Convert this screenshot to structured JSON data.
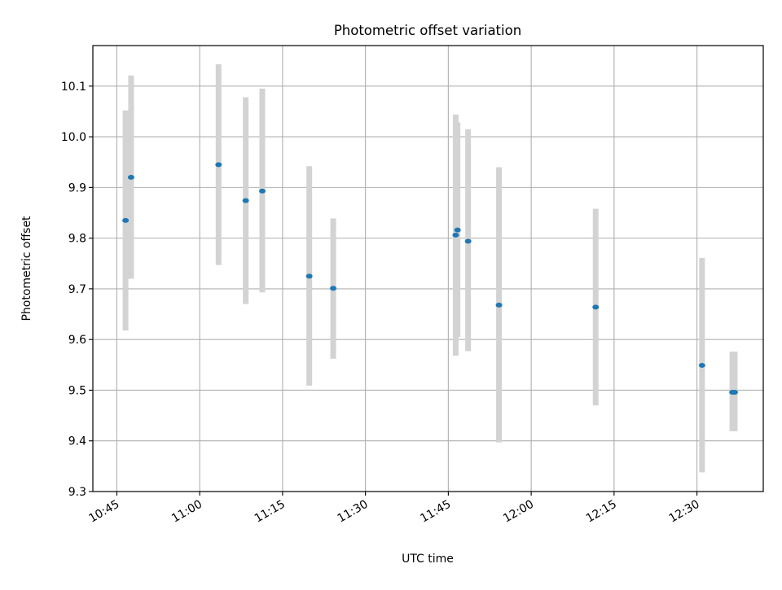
{
  "chart_data": {
    "type": "scatter",
    "title": "Photometric offset variation",
    "xlabel": "UTC time",
    "ylabel": "Photometric offset",
    "grid": true,
    "legend": "none",
    "xlim": [
      "10:40:40",
      "12:42:00"
    ],
    "ylim": [
      9.3,
      10.18
    ],
    "x_ticks": [
      "10:45",
      "11:00",
      "11:15",
      "11:30",
      "11:45",
      "12:00",
      "12:15",
      "12:30"
    ],
    "y_ticks": [
      "9.3",
      "9.4",
      "9.5",
      "9.6",
      "9.7",
      "9.8",
      "9.9",
      "10.0",
      "10.1"
    ],
    "x_tick_rotation_deg": 30,
    "colors": {
      "point": "#1f77b4",
      "errorbar": "#d3d3d3",
      "grid": "#b0b0b0",
      "axes": "#000000"
    },
    "series": [
      {
        "marker": "point",
        "points": [
          {
            "x": "10:46:35",
            "y": 9.835,
            "ylow": 9.618,
            "yhigh": 10.052
          },
          {
            "x": "10:47:35",
            "y": 9.92,
            "ylow": 9.72,
            "yhigh": 10.121
          },
          {
            "x": "11:03:25",
            "y": 9.945,
            "ylow": 9.747,
            "yhigh": 10.143
          },
          {
            "x": "11:08:20",
            "y": 9.874,
            "ylow": 9.67,
            "yhigh": 10.078
          },
          {
            "x": "11:11:20",
            "y": 9.893,
            "ylow": 9.693,
            "yhigh": 10.095
          },
          {
            "x": "11:19:50",
            "y": 9.725,
            "ylow": 9.509,
            "yhigh": 9.942
          },
          {
            "x": "11:24:10",
            "y": 9.701,
            "ylow": 9.562,
            "yhigh": 9.839
          },
          {
            "x": "11:46:20",
            "y": 9.806,
            "ylow": 9.568,
            "yhigh": 10.044
          },
          {
            "x": "11:46:40",
            "y": 9.816,
            "ylow": 9.605,
            "yhigh": 10.028
          },
          {
            "x": "11:48:35",
            "y": 9.794,
            "ylow": 9.577,
            "yhigh": 10.015
          },
          {
            "x": "11:54:10",
            "y": 9.668,
            "ylow": 9.397,
            "yhigh": 9.94
          },
          {
            "x": "12:11:40",
            "y": 9.664,
            "ylow": 9.47,
            "yhigh": 9.858
          },
          {
            "x": "12:30:55",
            "y": 9.549,
            "ylow": 9.338,
            "yhigh": 9.761
          },
          {
            "x": "12:36:25",
            "y": 9.496,
            "ylow": 9.419,
            "yhigh": 9.576
          },
          {
            "x": "12:36:50",
            "y": 9.496,
            "ylow": 9.419,
            "yhigh": 9.576
          }
        ]
      }
    ]
  }
}
